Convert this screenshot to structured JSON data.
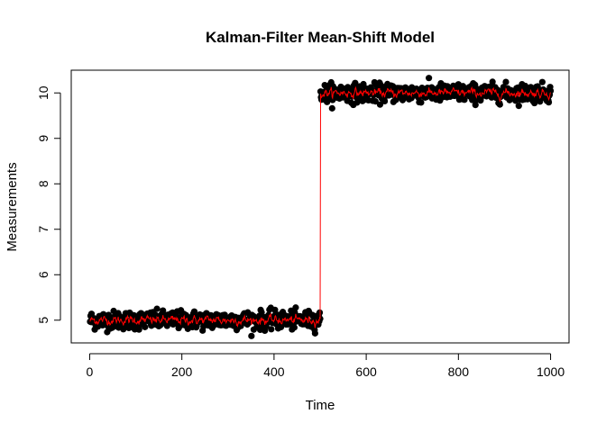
{
  "chart_data": {
    "type": "scatter",
    "title": "Kalman-Filter Mean-Shift Model",
    "xlabel": "Time",
    "ylabel": "Measurements",
    "xlim": [
      -40,
      1040
    ],
    "ylim": [
      4.5,
      10.5
    ],
    "x_ticks": [
      0,
      200,
      400,
      600,
      800,
      1000
    ],
    "y_ticks": [
      5,
      6,
      7,
      8,
      9,
      10
    ],
    "grid": false,
    "legend": "none",
    "series": [
      {
        "kind": "points",
        "color": "#000000",
        "n_points": 1000,
        "segments": [
          {
            "x_range": [
              1,
              500
            ],
            "mean": 5.0,
            "sd": 0.1
          },
          {
            "x_range": [
              501,
              1000
            ],
            "mean": 10.0,
            "sd": 0.1
          }
        ]
      },
      {
        "kind": "line",
        "color": "#ff0000",
        "description_values": {
          "level_before": 5.0,
          "level_after": 10.0,
          "shift_at": 500
        }
      }
    ]
  }
}
